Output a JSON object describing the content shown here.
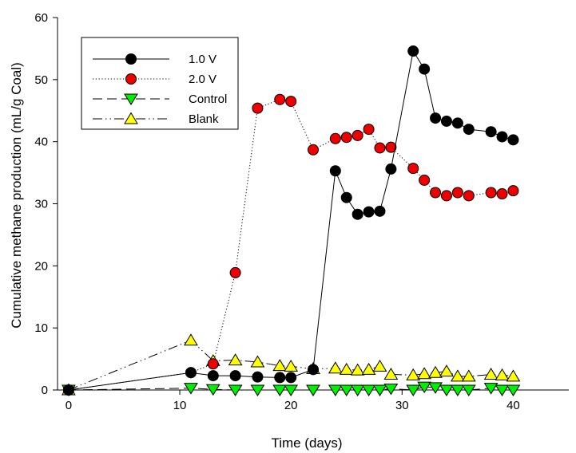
{
  "chart_data": {
    "type": "line",
    "title": "",
    "xlabel": "Time (days)",
    "ylabel": "Cumulative methane production (mL/g Coal)",
    "xlim": [
      -1,
      45
    ],
    "ylim": [
      0,
      60
    ],
    "xticks": [
      0,
      10,
      20,
      30,
      40
    ],
    "yticks": [
      0,
      10,
      20,
      30,
      40,
      50,
      60
    ],
    "grid": false,
    "legend_position": "top-left",
    "series": [
      {
        "name": "1.0 V",
        "marker": "circle",
        "line_style": "solid",
        "fill_color": "#000000",
        "x": [
          0,
          11,
          13,
          15,
          17,
          19,
          20,
          22,
          24,
          25,
          26,
          27,
          28,
          29,
          31,
          32,
          33,
          34,
          35,
          36,
          38,
          39,
          40
        ],
        "y": [
          0,
          2.8,
          2.3,
          2.3,
          2.1,
          2.0,
          2.0,
          3.3,
          35.3,
          31.0,
          28.3,
          28.7,
          28.8,
          35.6,
          54.6,
          51.7,
          43.8,
          43.3,
          43.0,
          42.0,
          41.6,
          40.8,
          40.3
        ]
      },
      {
        "name": "2.0 V",
        "marker": "circle",
        "line_style": "dotted",
        "fill_color": "#ee0000",
        "x": [
          0,
          11,
          13,
          15,
          17,
          19,
          20,
          22,
          24,
          25,
          26,
          27,
          28,
          29,
          31,
          32,
          33,
          34,
          35,
          36,
          38,
          39,
          40
        ],
        "y": [
          0,
          2.8,
          4.2,
          18.9,
          45.4,
          46.8,
          46.5,
          38.7,
          40.5,
          40.7,
          41.0,
          42.0,
          39.0,
          39.1,
          35.7,
          33.8,
          31.8,
          31.3,
          31.8,
          31.3,
          31.8,
          31.6,
          32.1
        ]
      },
      {
        "name": "Control",
        "marker": "triangle-down",
        "line_style": "dashed",
        "fill_color": "#00ee00",
        "x": [
          0,
          11,
          13,
          15,
          17,
          19,
          20,
          22,
          24,
          25,
          26,
          27,
          28,
          29,
          31,
          32,
          33,
          34,
          35,
          36,
          38,
          39,
          40
        ],
        "y": [
          0,
          0.3,
          0.1,
          0.0,
          0.0,
          0.0,
          0.0,
          0.0,
          0.0,
          0.0,
          0.0,
          0.0,
          0.0,
          0.2,
          0.0,
          0.5,
          0.4,
          0.0,
          0.0,
          0.0,
          0.3,
          0.0,
          0.0
        ]
      },
      {
        "name": "Blank",
        "marker": "triangle-up",
        "line_style": "dash-dot-dot",
        "fill_color": "#ffff00",
        "x": [
          0,
          11,
          13,
          15,
          17,
          19,
          20,
          22,
          24,
          25,
          26,
          27,
          28,
          29,
          31,
          32,
          33,
          34,
          35,
          36,
          38,
          39,
          40
        ],
        "y": [
          0,
          8.0,
          4.7,
          4.8,
          4.5,
          3.9,
          3.8,
          3.4,
          3.5,
          3.3,
          3.2,
          3.3,
          3.8,
          2.5,
          2.4,
          2.6,
          2.8,
          3.0,
          2.2,
          2.2,
          2.5,
          2.4,
          2.2
        ]
      }
    ]
  }
}
